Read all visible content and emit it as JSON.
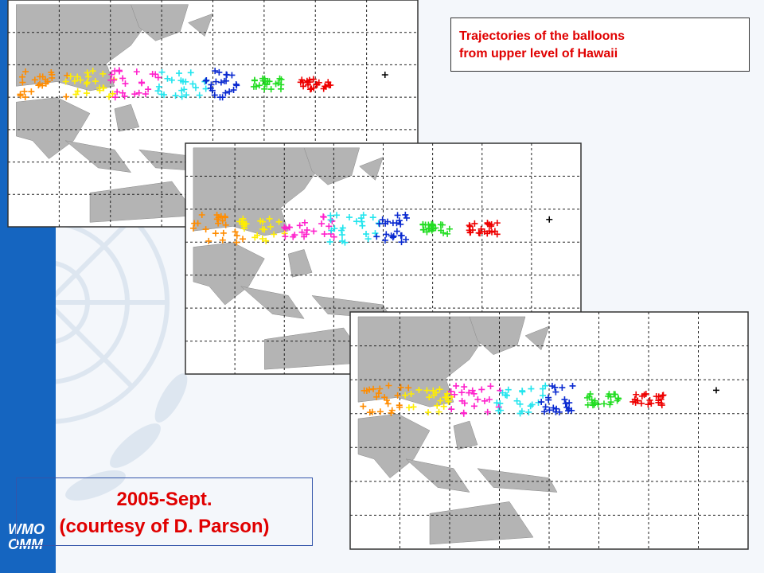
{
  "title_box": {
    "lines": [
      "Trajectories  of the balloons",
      "from upper level of Hawaii"
    ]
  },
  "caption": {
    "lines": [
      "2005-Sept.",
      "(courtesy of D. Parson)"
    ]
  },
  "logo": {
    "lines": [
      "WMO",
      "OMM"
    ]
  }
}
